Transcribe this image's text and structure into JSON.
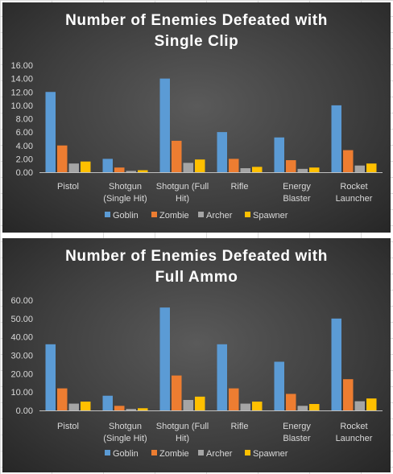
{
  "chart_data": [
    {
      "type": "bar",
      "title_lines": [
        "Number of Enemies Defeated with",
        "Single Clip"
      ],
      "categories": [
        [
          "Pistol"
        ],
        [
          "Shotgun",
          "(Single Hit)"
        ],
        [
          "Shotgun (Full",
          "Hit)"
        ],
        [
          "Rifle"
        ],
        [
          "Energy",
          "Blaster"
        ],
        [
          "Rocket",
          "Launcher"
        ]
      ],
      "series": [
        {
          "name": "Goblin",
          "color": "#5b9bd5",
          "values": [
            12.0,
            2.0,
            14.0,
            6.0,
            5.2,
            10.0
          ]
        },
        {
          "name": "Zombie",
          "color": "#ed7d31",
          "values": [
            4.0,
            0.7,
            4.7,
            2.0,
            1.8,
            3.3
          ]
        },
        {
          "name": "Archer",
          "color": "#a5a5a5",
          "values": [
            1.3,
            0.2,
            1.4,
            0.6,
            0.5,
            1.0
          ]
        },
        {
          "name": "Spawner",
          "color": "#ffc000",
          "values": [
            1.6,
            0.3,
            1.9,
            0.8,
            0.7,
            1.3
          ]
        }
      ],
      "yticks": [
        "0.00",
        "2.00",
        "4.00",
        "6.00",
        "8.00",
        "10.00",
        "12.00",
        "14.00",
        "16.00"
      ],
      "ylim": [
        0,
        16
      ],
      "legend": "bottom",
      "grid": false
    },
    {
      "type": "bar",
      "title_lines": [
        "Number of Enemies Defeated with",
        "Full Ammo"
      ],
      "categories": [
        [
          "Pistol"
        ],
        [
          "Shotgun",
          "(Single Hit)"
        ],
        [
          "Shotgun (Full",
          "Hit)"
        ],
        [
          "Rifle"
        ],
        [
          "Energy",
          "Blaster"
        ],
        [
          "Rocket",
          "Launcher"
        ]
      ],
      "series": [
        {
          "name": "Goblin",
          "color": "#5b9bd5",
          "values": [
            36,
            8,
            56,
            36,
            26.5,
            50
          ]
        },
        {
          "name": "Zombie",
          "color": "#ed7d31",
          "values": [
            12,
            2.5,
            19,
            12,
            9,
            17
          ]
        },
        {
          "name": "Archer",
          "color": "#a5a5a5",
          "values": [
            3.7,
            0.8,
            5.7,
            3.7,
            2.5,
            5
          ]
        },
        {
          "name": "Spawner",
          "color": "#ffc000",
          "values": [
            4.8,
            1.2,
            7.5,
            4.8,
            3.5,
            6.5
          ]
        }
      ],
      "yticks": [
        "0.00",
        "10.00",
        "20.00",
        "30.00",
        "40.00",
        "50.00",
        "60.00"
      ],
      "ylim": [
        0,
        60
      ],
      "legend": "bottom",
      "grid": false
    }
  ]
}
